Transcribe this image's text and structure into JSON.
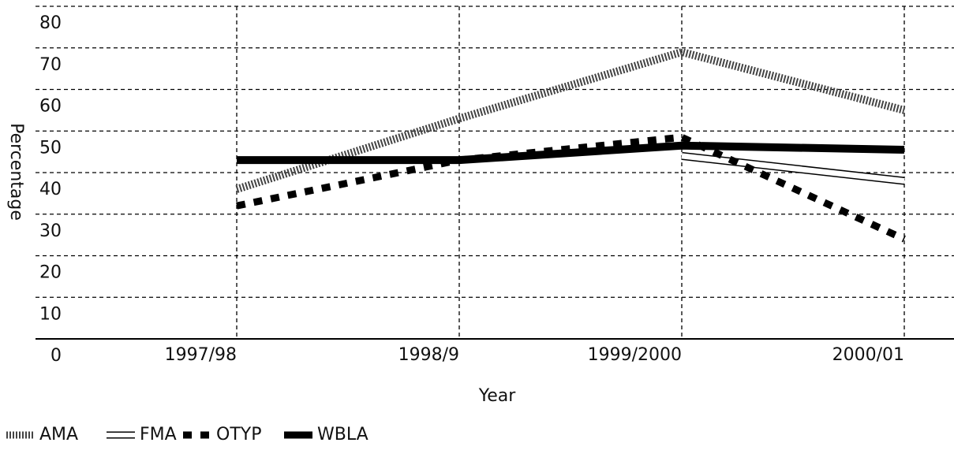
{
  "chart_data": {
    "type": "line",
    "x_label": "Year",
    "y_label": "Percentage",
    "categories": [
      "1997/98",
      "1998/9",
      "1999/2000",
      "2000/01"
    ],
    "ylim": [
      0,
      80
    ],
    "yticks": [
      0,
      10,
      20,
      30,
      40,
      50,
      60,
      70,
      80
    ],
    "grid": true,
    "series": [
      {
        "name": "AMA",
        "color": "#444444",
        "values": [
          36,
          53,
          69,
          55
        ]
      },
      {
        "name": "FMA",
        "color": "#ffffff",
        "values": [
          null,
          null,
          44,
          38
        ]
      },
      {
        "name": "OTYP",
        "color": "#000000",
        "values": [
          32,
          43,
          48.5,
          24
        ]
      },
      {
        "name": "WBLA",
        "color": "#000000",
        "values": [
          43,
          43,
          46.5,
          45.5
        ]
      }
    ]
  }
}
